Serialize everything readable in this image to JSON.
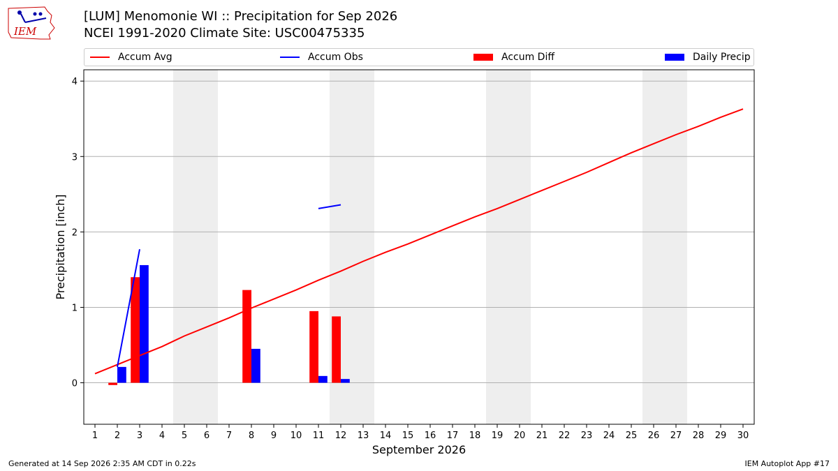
{
  "header": {
    "logo_text": "IEM",
    "title_line1": "[LUM] Menomonie  WI :: Precipitation for Sep 2026",
    "title_line2": "NCEI 1991-2020 Climate Site: USC00475335"
  },
  "legend": {
    "placement": "top",
    "items": [
      {
        "label": "Accum Avg",
        "kind": "line",
        "color": "#ff0000"
      },
      {
        "label": "Accum Obs",
        "kind": "line",
        "color": "#0000ff"
      },
      {
        "label": "Accum Diff",
        "kind": "bar",
        "color": "#ff0000"
      },
      {
        "label": "Daily Precip",
        "kind": "bar",
        "color": "#0000ff"
      }
    ]
  },
  "footer": {
    "left": "Generated at 14 Sep 2026 2:35 AM CDT in 0.22s",
    "right": "IEM Autoplot App #17"
  },
  "chart_data": {
    "type": "bar",
    "title": "[LUM] Menomonie  WI :: Precipitation for Sep 2026",
    "subtitle": "NCEI 1991-2020 Climate Site: USC00475335",
    "xlabel": "September 2026",
    "ylabel": "Precipitation [inch]",
    "xlim": [
      0.5,
      30.5
    ],
    "ylim": [
      -0.55,
      4.15
    ],
    "yticks": [
      0,
      1,
      2,
      3,
      4
    ],
    "ytick_labels": [
      "0",
      "1",
      "2",
      "3",
      "4"
    ],
    "x": [
      1,
      2,
      3,
      4,
      5,
      6,
      7,
      8,
      9,
      10,
      11,
      12,
      13,
      14,
      15,
      16,
      17,
      18,
      19,
      20,
      21,
      22,
      23,
      24,
      25,
      26,
      27,
      28,
      29,
      30
    ],
    "xtick_labels": [
      "1",
      "2",
      "3",
      "4",
      "5",
      "6",
      "7",
      "8",
      "9",
      "10",
      "11",
      "12",
      "13",
      "14",
      "15",
      "16",
      "17",
      "18",
      "19",
      "20",
      "21",
      "22",
      "23",
      "24",
      "25",
      "26",
      "27",
      "28",
      "29",
      "30"
    ],
    "grid": "horizontal",
    "weekend_shading": [
      [
        5,
        6
      ],
      [
        12,
        13
      ],
      [
        19,
        20
      ],
      [
        26,
        27
      ]
    ],
    "weekend_color": "#eeeeee",
    "series": [
      {
        "name": "Accum Avg",
        "kind": "line",
        "color": "#ff0000",
        "x": [
          1,
          2,
          3,
          4,
          5,
          6,
          7,
          8,
          9,
          10,
          11,
          12,
          13,
          14,
          15,
          16,
          17,
          18,
          19,
          20,
          21,
          22,
          23,
          24,
          25,
          26,
          27,
          28,
          29,
          30
        ],
        "values": [
          0.12,
          0.24,
          0.36,
          0.48,
          0.62,
          0.74,
          0.86,
          0.99,
          1.11,
          1.23,
          1.36,
          1.48,
          1.61,
          1.73,
          1.84,
          1.96,
          2.08,
          2.2,
          2.31,
          2.43,
          2.55,
          2.67,
          2.79,
          2.92,
          3.05,
          3.17,
          3.29,
          3.4,
          3.52,
          3.63
        ]
      },
      {
        "name": "Accum Obs",
        "kind": "line",
        "color": "#0000ff",
        "x": [
          1,
          2,
          3,
          4,
          5,
          6,
          7,
          8,
          9,
          10,
          11,
          12,
          13,
          14,
          15,
          16,
          17,
          18,
          19,
          20,
          21,
          22,
          23,
          24,
          25,
          26,
          27,
          28,
          29,
          30
        ],
        "values": [
          null,
          0.21,
          1.77,
          null,
          null,
          null,
          null,
          null,
          null,
          null,
          2.31,
          2.36,
          null,
          null,
          null,
          null,
          null,
          null,
          null,
          null,
          null,
          null,
          null,
          null,
          null,
          null,
          null,
          null,
          null,
          null
        ]
      },
      {
        "name": "Accum Diff",
        "kind": "bar",
        "color": "#ff0000",
        "offset": -0.2,
        "x": [
          2,
          3,
          8,
          11,
          12
        ],
        "values": [
          -0.03,
          1.4,
          1.23,
          0.95,
          0.88
        ]
      },
      {
        "name": "Daily Precip",
        "kind": "bar",
        "color": "#0000ff",
        "offset": 0.2,
        "x": [
          2,
          3,
          8,
          11,
          12
        ],
        "values": [
          0.21,
          1.56,
          0.45,
          0.09,
          0.05
        ]
      }
    ]
  }
}
